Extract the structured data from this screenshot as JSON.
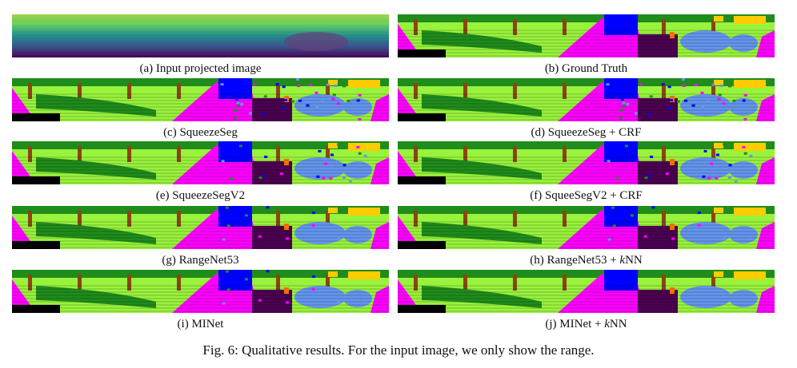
{
  "figure": {
    "caption": "Fig. 6: Qualitative results. For the input image, we only show the range.",
    "panels": [
      {
        "id": "a",
        "caption": "(a) Input projected image",
        "kind": "range"
      },
      {
        "id": "b",
        "caption": "(b) Ground Truth",
        "kind": "segmentation",
        "noise": 0
      },
      {
        "id": "c",
        "caption": "(c) SqueezeSeg",
        "kind": "segmentation",
        "noise": 3
      },
      {
        "id": "d",
        "caption": "(d) SqueezeSeg + CRF",
        "kind": "segmentation",
        "noise": 3
      },
      {
        "id": "e",
        "caption": "(e) SqueezeSegV2",
        "kind": "segmentation",
        "noise": 2
      },
      {
        "id": "f",
        "caption": "(f) SqueeSegV2 + CRF",
        "kind": "segmentation",
        "noise": 2
      },
      {
        "id": "g",
        "caption": "(g) RangeNet53",
        "kind": "segmentation",
        "noise": 1
      },
      {
        "id": "h",
        "caption_pre": "(h) RangeNet53 + ",
        "caption_em": "k",
        "caption_post": "NN",
        "kind": "segmentation",
        "noise": 1
      },
      {
        "id": "i",
        "caption": "(i) MINet",
        "kind": "segmentation",
        "noise": 1
      },
      {
        "id": "j",
        "caption_pre": "(j) MINet + ",
        "caption_em": "k",
        "caption_post": "NN",
        "kind": "segmentation",
        "noise": 0
      }
    ],
    "class_colors": {
      "vegetation": "#99f23c",
      "terrain": "#1f8c1b",
      "trunk": "#8b4513",
      "road": "#ff00ff",
      "sidewalk": "#4b0050",
      "building": "#ffcc00",
      "car": "#6495ed",
      "truck": "#0000ff",
      "fence": "#ff7800",
      "unlabeled": "#000000"
    },
    "range_colors": [
      "#440154",
      "#3b528b",
      "#21908d",
      "#5dc863",
      "#fde725"
    ]
  }
}
